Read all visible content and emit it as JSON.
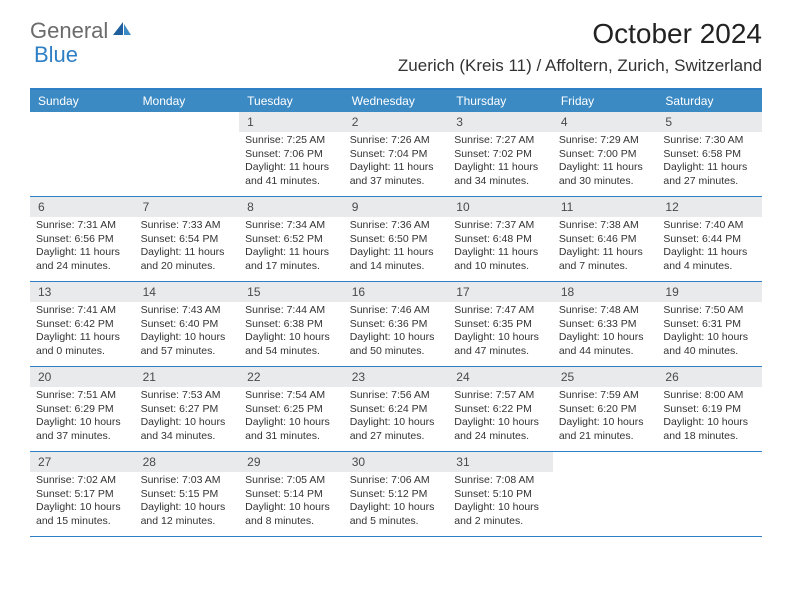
{
  "logo": {
    "part1": "General",
    "part2": "Blue"
  },
  "title": "October 2024",
  "location": "Zuerich (Kreis 11) / Affoltern, Zurich, Switzerland",
  "colors": {
    "accent": "#3b8ac4",
    "border": "#2f7fc4",
    "daynum_bg": "#e8eaec",
    "logo_gray": "#6b6b6b",
    "logo_blue": "#2f7fc4",
    "text": "#333333",
    "white": "#ffffff"
  },
  "day_names": [
    "Sunday",
    "Monday",
    "Tuesday",
    "Wednesday",
    "Thursday",
    "Friday",
    "Saturday"
  ],
  "weeks": [
    [
      null,
      null,
      {
        "n": "1",
        "sr": "7:25 AM",
        "ss": "7:06 PM",
        "dl": "11 hours and 41 minutes."
      },
      {
        "n": "2",
        "sr": "7:26 AM",
        "ss": "7:04 PM",
        "dl": "11 hours and 37 minutes."
      },
      {
        "n": "3",
        "sr": "7:27 AM",
        "ss": "7:02 PM",
        "dl": "11 hours and 34 minutes."
      },
      {
        "n": "4",
        "sr": "7:29 AM",
        "ss": "7:00 PM",
        "dl": "11 hours and 30 minutes."
      },
      {
        "n": "5",
        "sr": "7:30 AM",
        "ss": "6:58 PM",
        "dl": "11 hours and 27 minutes."
      }
    ],
    [
      {
        "n": "6",
        "sr": "7:31 AM",
        "ss": "6:56 PM",
        "dl": "11 hours and 24 minutes."
      },
      {
        "n": "7",
        "sr": "7:33 AM",
        "ss": "6:54 PM",
        "dl": "11 hours and 20 minutes."
      },
      {
        "n": "8",
        "sr": "7:34 AM",
        "ss": "6:52 PM",
        "dl": "11 hours and 17 minutes."
      },
      {
        "n": "9",
        "sr": "7:36 AM",
        "ss": "6:50 PM",
        "dl": "11 hours and 14 minutes."
      },
      {
        "n": "10",
        "sr": "7:37 AM",
        "ss": "6:48 PM",
        "dl": "11 hours and 10 minutes."
      },
      {
        "n": "11",
        "sr": "7:38 AM",
        "ss": "6:46 PM",
        "dl": "11 hours and 7 minutes."
      },
      {
        "n": "12",
        "sr": "7:40 AM",
        "ss": "6:44 PM",
        "dl": "11 hours and 4 minutes."
      }
    ],
    [
      {
        "n": "13",
        "sr": "7:41 AM",
        "ss": "6:42 PM",
        "dl": "11 hours and 0 minutes."
      },
      {
        "n": "14",
        "sr": "7:43 AM",
        "ss": "6:40 PM",
        "dl": "10 hours and 57 minutes."
      },
      {
        "n": "15",
        "sr": "7:44 AM",
        "ss": "6:38 PM",
        "dl": "10 hours and 54 minutes."
      },
      {
        "n": "16",
        "sr": "7:46 AM",
        "ss": "6:36 PM",
        "dl": "10 hours and 50 minutes."
      },
      {
        "n": "17",
        "sr": "7:47 AM",
        "ss": "6:35 PM",
        "dl": "10 hours and 47 minutes."
      },
      {
        "n": "18",
        "sr": "7:48 AM",
        "ss": "6:33 PM",
        "dl": "10 hours and 44 minutes."
      },
      {
        "n": "19",
        "sr": "7:50 AM",
        "ss": "6:31 PM",
        "dl": "10 hours and 40 minutes."
      }
    ],
    [
      {
        "n": "20",
        "sr": "7:51 AM",
        "ss": "6:29 PM",
        "dl": "10 hours and 37 minutes."
      },
      {
        "n": "21",
        "sr": "7:53 AM",
        "ss": "6:27 PM",
        "dl": "10 hours and 34 minutes."
      },
      {
        "n": "22",
        "sr": "7:54 AM",
        "ss": "6:25 PM",
        "dl": "10 hours and 31 minutes."
      },
      {
        "n": "23",
        "sr": "7:56 AM",
        "ss": "6:24 PM",
        "dl": "10 hours and 27 minutes."
      },
      {
        "n": "24",
        "sr": "7:57 AM",
        "ss": "6:22 PM",
        "dl": "10 hours and 24 minutes."
      },
      {
        "n": "25",
        "sr": "7:59 AM",
        "ss": "6:20 PM",
        "dl": "10 hours and 21 minutes."
      },
      {
        "n": "26",
        "sr": "8:00 AM",
        "ss": "6:19 PM",
        "dl": "10 hours and 18 minutes."
      }
    ],
    [
      {
        "n": "27",
        "sr": "7:02 AM",
        "ss": "5:17 PM",
        "dl": "10 hours and 15 minutes."
      },
      {
        "n": "28",
        "sr": "7:03 AM",
        "ss": "5:15 PM",
        "dl": "10 hours and 12 minutes."
      },
      {
        "n": "29",
        "sr": "7:05 AM",
        "ss": "5:14 PM",
        "dl": "10 hours and 8 minutes."
      },
      {
        "n": "30",
        "sr": "7:06 AM",
        "ss": "5:12 PM",
        "dl": "10 hours and 5 minutes."
      },
      {
        "n": "31",
        "sr": "7:08 AM",
        "ss": "5:10 PM",
        "dl": "10 hours and 2 minutes."
      },
      null,
      null
    ]
  ],
  "labels": {
    "sunrise": "Sunrise:",
    "sunset": "Sunset:",
    "daylight": "Daylight:"
  }
}
